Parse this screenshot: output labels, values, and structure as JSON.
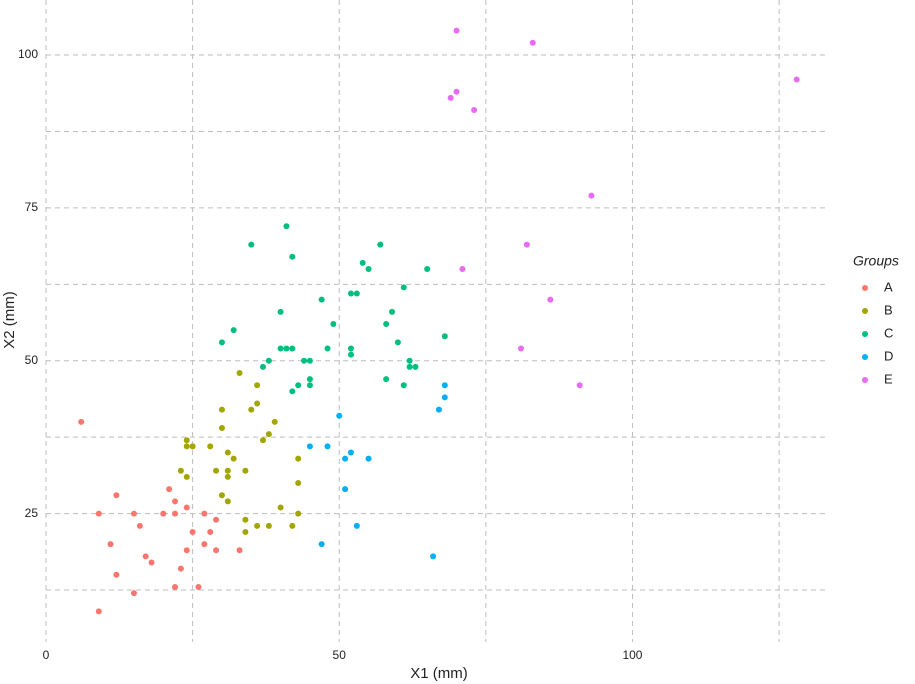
{
  "chart_data": {
    "type": "scatter",
    "x_label": "X1 (mm)",
    "y_label": "X2 (mm)",
    "legend_title": "Groups",
    "legend_position": "right",
    "grid": true,
    "xlim": [
      0,
      133
    ],
    "ylim": [
      4,
      109
    ],
    "xticks": [
      0,
      50,
      100
    ],
    "yticks": [
      25,
      50,
      75,
      100
    ],
    "x_minor_grid": [
      25,
      75,
      125
    ],
    "y_minor_grid": [
      12.5,
      37.5,
      62.5,
      87.5
    ],
    "series": [
      {
        "name": "A",
        "color": "#F8766D",
        "x": [
          6,
          9,
          9,
          11,
          12,
          12,
          15,
          15,
          16,
          17,
          18,
          20,
          21,
          22,
          22,
          22,
          23,
          24,
          24,
          25,
          27,
          27,
          28,
          29,
          29,
          26,
          33
        ],
        "values": [
          40,
          25,
          9,
          20,
          28,
          15,
          25,
          12,
          23,
          18,
          17,
          25,
          29,
          27,
          25,
          13,
          16,
          26,
          19,
          22,
          25,
          20,
          22,
          24,
          19,
          13,
          19
        ]
      },
      {
        "name": "B",
        "color": "#A3A500",
        "x": [
          30,
          30,
          30,
          31,
          31,
          31,
          31,
          32,
          29,
          28,
          24,
          24,
          25,
          24,
          23,
          33,
          34,
          34,
          34,
          35,
          36,
          36,
          36,
          37,
          38,
          38,
          39,
          40,
          42,
          43,
          43,
          43
        ],
        "values": [
          42,
          39,
          28,
          35,
          31,
          32,
          27,
          34,
          32,
          36,
          37,
          36,
          36,
          31,
          32,
          48,
          32,
          24,
          22,
          42,
          46,
          43,
          23,
          37,
          38,
          23,
          40,
          26,
          23,
          34,
          30,
          25
        ]
      },
      {
        "name": "C",
        "color": "#00BF7D",
        "x": [
          30,
          32,
          35,
          37,
          38,
          40,
          40,
          41,
          41,
          42,
          42,
          42,
          43,
          44,
          45,
          45,
          45,
          47,
          48,
          49,
          52,
          53,
          52,
          52,
          54,
          55,
          57,
          58,
          58,
          59,
          60,
          61,
          61,
          62,
          62,
          63,
          65,
          68
        ],
        "values": [
          53,
          55,
          69,
          49,
          50,
          58,
          52,
          72,
          52,
          52,
          67,
          45,
          46,
          50,
          50,
          47,
          46,
          60,
          52,
          56,
          61,
          61,
          52,
          51,
          66,
          65,
          69,
          56,
          47,
          58,
          53,
          62,
          46,
          50,
          49,
          49,
          65,
          54
        ]
      },
      {
        "name": "D",
        "color": "#00B0F6",
        "x": [
          45,
          48,
          50,
          51,
          51,
          52,
          53,
          55,
          47,
          66,
          67,
          68,
          68
        ],
        "values": [
          36,
          36,
          41,
          34,
          29,
          35,
          23,
          34,
          20,
          18,
          42,
          44,
          46
        ]
      },
      {
        "name": "E",
        "color": "#E76BF3",
        "x": [
          70,
          83,
          69,
          70,
          73,
          128,
          93,
          82,
          71,
          86,
          81,
          91
        ],
        "values": [
          104,
          102,
          93,
          94,
          91,
          96,
          77,
          69,
          65,
          60,
          52,
          46
        ]
      }
    ]
  }
}
